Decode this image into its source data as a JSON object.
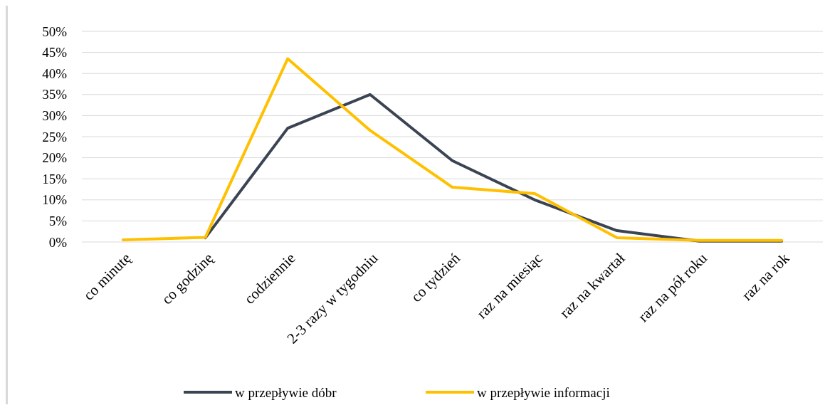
{
  "chart_data": {
    "type": "line",
    "categories": [
      "co minutę",
      "co godzinę",
      "codziennie",
      "2-3 razy w tygodniu",
      "co tydzień",
      "raz na miesiąc",
      "raz na kwartał",
      "raz na pół roku",
      "raz na rok"
    ],
    "series": [
      {
        "name": "w przepływie dóbr",
        "color": "#3b4453",
        "values": [
          null,
          1,
          27,
          35,
          19.3,
          10,
          2.7,
          0.2,
          0.2
        ]
      },
      {
        "name": "w przepływie informacji",
        "color": "#ffc000",
        "values": [
          0.5,
          1.1,
          43.5,
          26.5,
          13,
          11.5,
          1,
          0.4,
          0.4
        ]
      }
    ],
    "ylim": [
      0,
      50
    ],
    "yticks": [
      {
        "value": 0,
        "label": "0%"
      },
      {
        "value": 5,
        "label": "5%"
      },
      {
        "value": 10,
        "label": "10%"
      },
      {
        "value": 15,
        "label": "15%"
      },
      {
        "value": 20,
        "label": "20%"
      },
      {
        "value": 25,
        "label": "25%"
      },
      {
        "value": 30,
        "label": "30%"
      },
      {
        "value": 35,
        "label": "35%"
      },
      {
        "value": 40,
        "label": "40%"
      },
      {
        "value": 45,
        "label": "45%"
      },
      {
        "value": 50,
        "label": "50%"
      }
    ],
    "grid": "y",
    "legend": "bottom",
    "line_style": "solid"
  }
}
